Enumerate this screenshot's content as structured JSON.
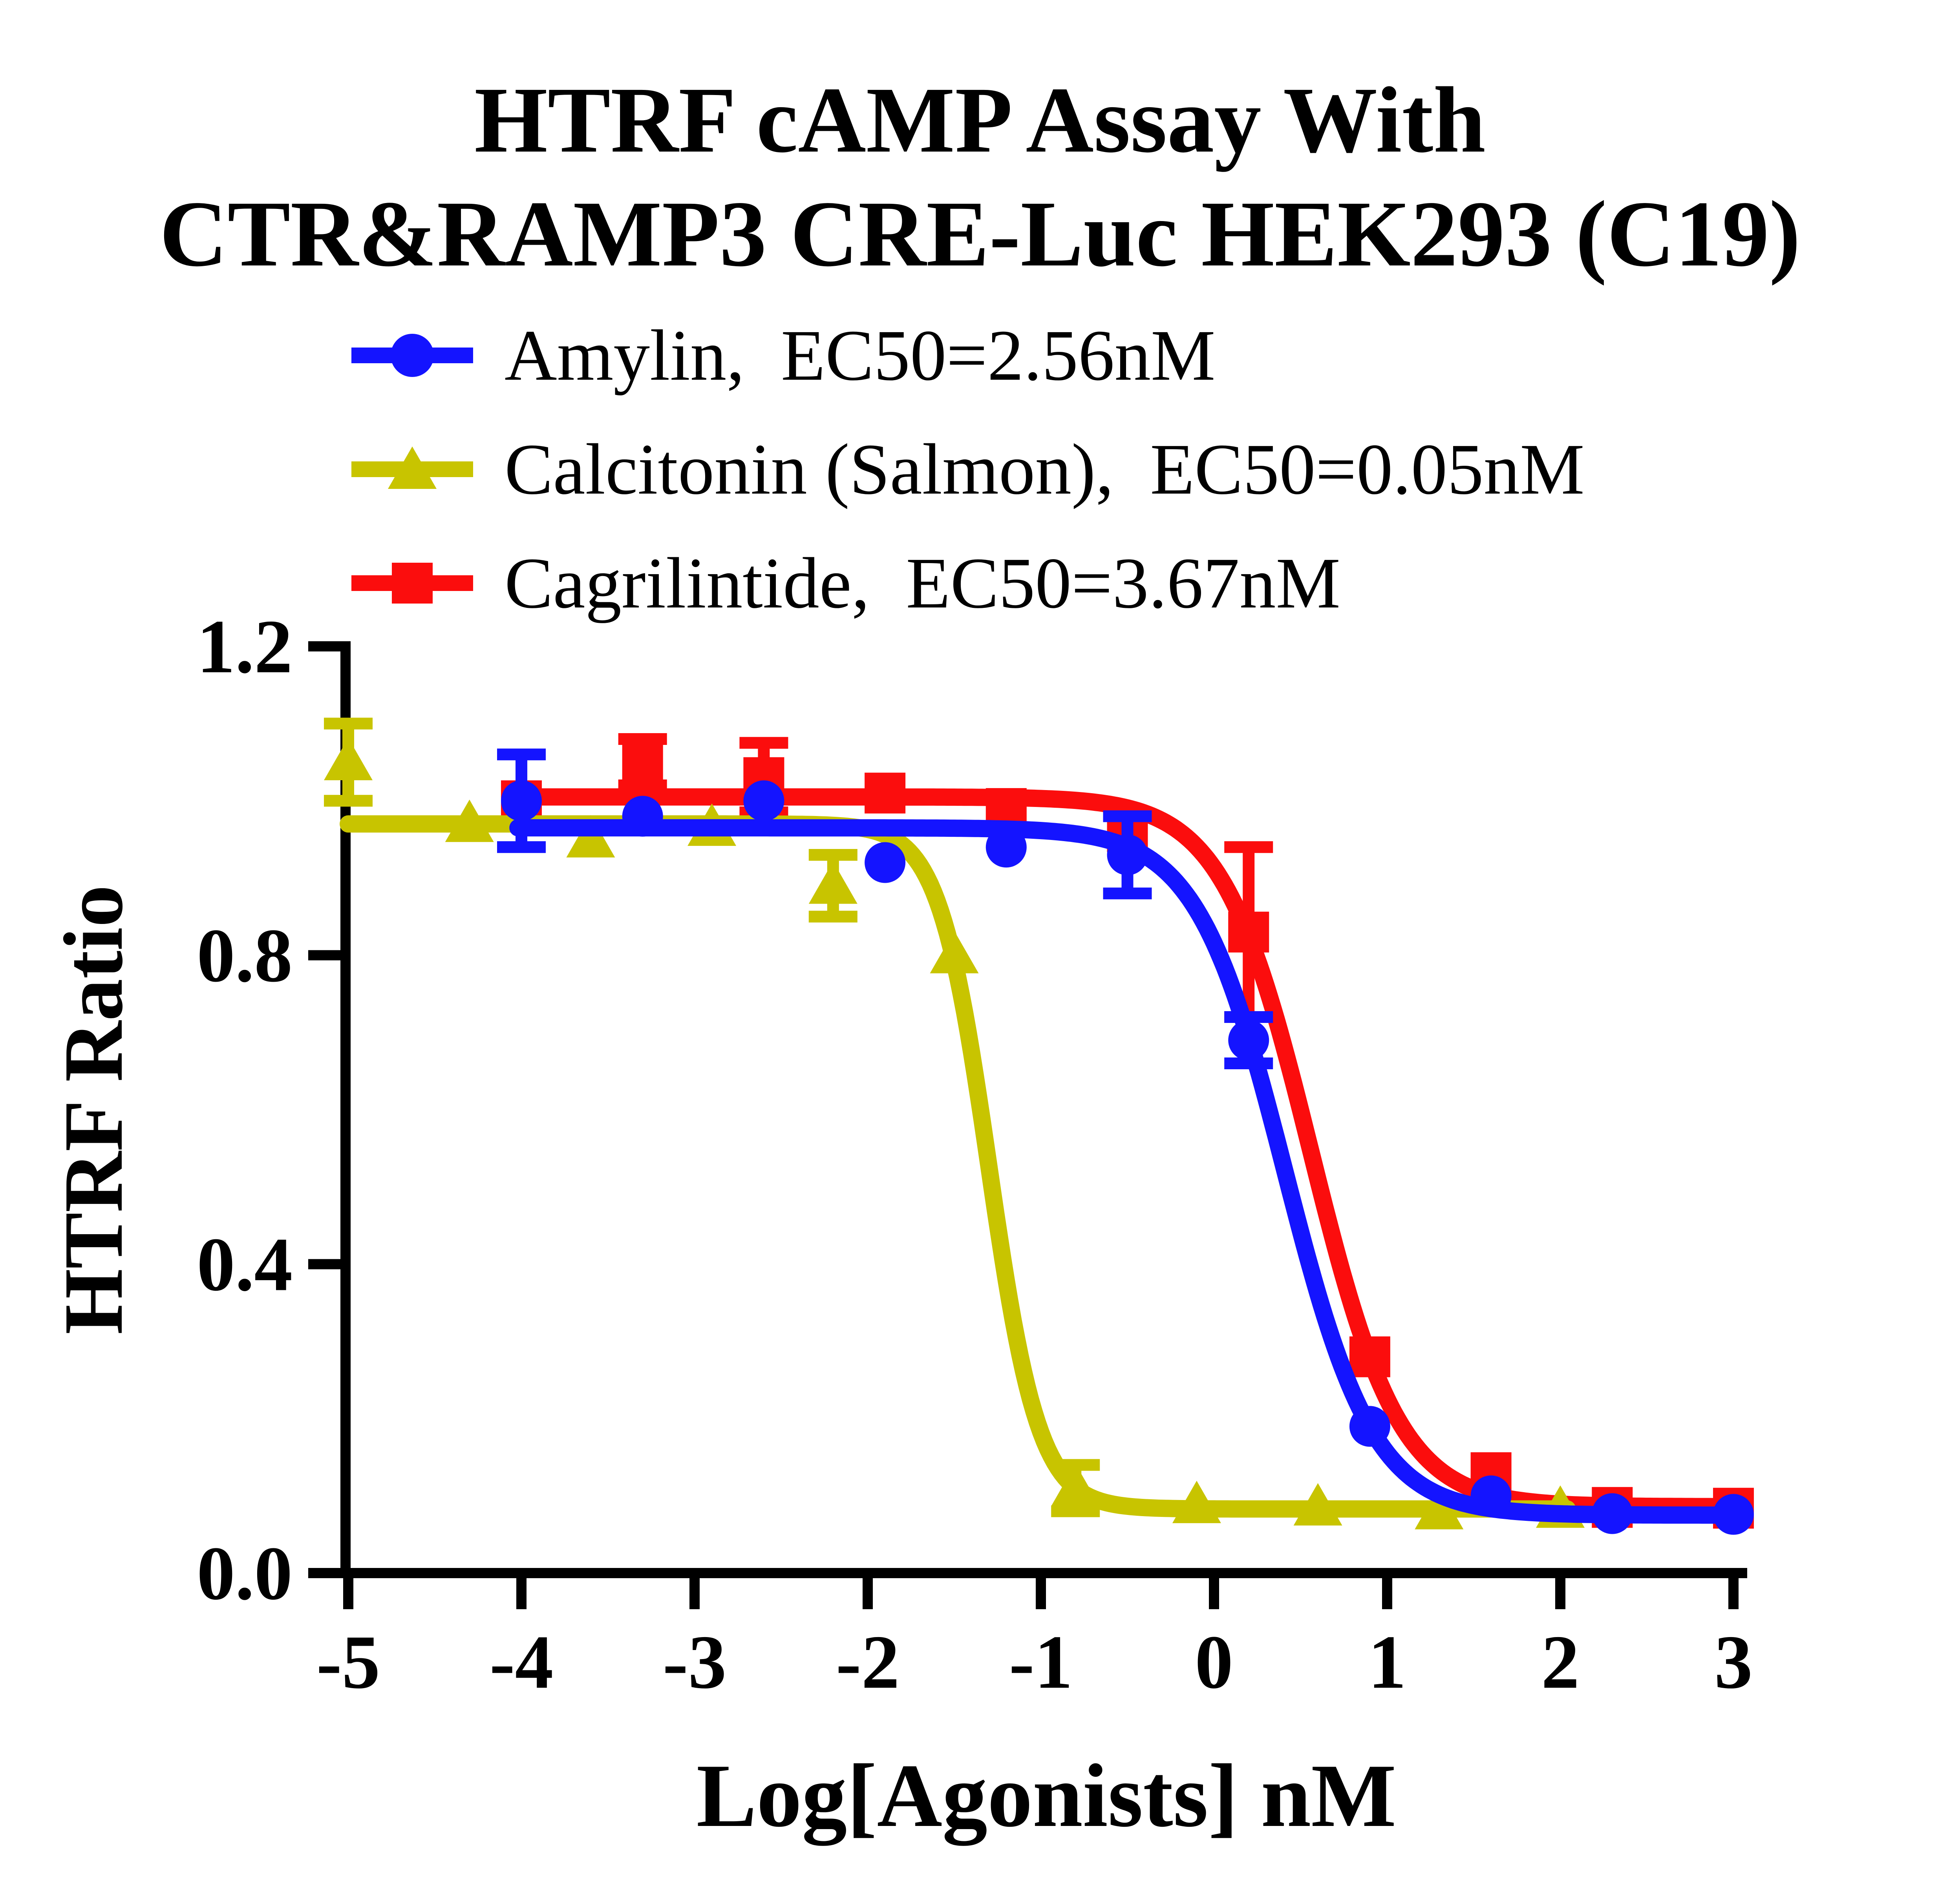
{
  "title": {
    "line1": "HTRF cAMP Assay With",
    "line2": "CTR&RAMP3 CRE-Luc HEK293 (C19)"
  },
  "chart_data": {
    "type": "scatter",
    "subtype": "dose-response-sigmoid",
    "title": "HTRF cAMP Assay With CTR&RAMP3 CRE-Luc HEK293 (C19)",
    "xlabel": "Log[Agonists] nM",
    "ylabel": "HTRF Ratio",
    "xlim": [
      -5,
      3
    ],
    "ylim": [
      0.0,
      1.2
    ],
    "grid": false,
    "legend_position": "top-left",
    "x_ticks": [
      {
        "v": -5,
        "label": "-5"
      },
      {
        "v": -4,
        "label": "-4"
      },
      {
        "v": -3,
        "label": "-3"
      },
      {
        "v": -2,
        "label": "-2"
      },
      {
        "v": -1,
        "label": "-1"
      },
      {
        "v": 0,
        "label": "0"
      },
      {
        "v": 1,
        "label": "1"
      },
      {
        "v": 2,
        "label": "2"
      },
      {
        "v": 3,
        "label": "3"
      }
    ],
    "y_ticks": [
      {
        "v": 0.0,
        "label": "0.0"
      },
      {
        "v": 0.4,
        "label": "0.4"
      },
      {
        "v": 0.8,
        "label": "0.8"
      },
      {
        "v": 1.2,
        "label": "1.2"
      }
    ],
    "draw_order": [
      2,
      1,
      0
    ],
    "series": [
      {
        "name": "Amylin",
        "legend_label": "Amylin,  EC50=2.56nM",
        "ec50": "2.56nM",
        "marker": "circle",
        "color": "#1414FF",
        "fit": {
          "top": 0.965,
          "bottom": 0.075,
          "logEC50": 0.41,
          "hill": 1.7,
          "x_start": -4.02,
          "x_end": 3.05
        },
        "points": [
          {
            "x": -4.0,
            "y": 1.0,
            "err": 0.06
          },
          {
            "x": -3.3,
            "y": 0.98,
            "err": 0
          },
          {
            "x": -2.6,
            "y": 1.0,
            "err": 0
          },
          {
            "x": -1.9,
            "y": 0.92,
            "err": 0
          },
          {
            "x": -1.2,
            "y": 0.94,
            "err": 0
          },
          {
            "x": -0.5,
            "y": 0.93,
            "err": 0.05
          },
          {
            "x": 0.2,
            "y": 0.69,
            "err": 0.03
          },
          {
            "x": 0.9,
            "y": 0.19,
            "err": 0
          },
          {
            "x": 1.6,
            "y": 0.1,
            "err": 0
          },
          {
            "x": 2.3,
            "y": 0.077,
            "err": 0
          },
          {
            "x": 3.0,
            "y": 0.076,
            "err": 0
          }
        ]
      },
      {
        "name": "Calcitonin (Salmon)",
        "legend_label": "Calcitonin (Salmon),  EC50=0.05nM",
        "ec50": "0.05nM",
        "marker": "triangle",
        "color": "#C8C400",
        "fit": {
          "top": 0.97,
          "bottom": 0.083,
          "logEC50": -1.3,
          "hill": 3.0,
          "x_start": -5.0,
          "x_end": 2.05
        },
        "points": [
          {
            "x": -5.0,
            "y": 1.05,
            "err": 0.05
          },
          {
            "x": -4.3,
            "y": 0.97,
            "err": 0
          },
          {
            "x": -3.6,
            "y": 0.95,
            "err": 0
          },
          {
            "x": -2.9,
            "y": 0.965,
            "err": 0
          },
          {
            "x": -2.2,
            "y": 0.89,
            "err": 0.04
          },
          {
            "x": -1.5,
            "y": 0.8,
            "err": 0
          },
          {
            "x": -0.8,
            "y": 0.11,
            "err": 0.03
          },
          {
            "x": -0.1,
            "y": 0.088,
            "err": 0
          },
          {
            "x": 0.6,
            "y": 0.085,
            "err": 0
          },
          {
            "x": 1.3,
            "y": 0.08,
            "err": 0
          },
          {
            "x": 2.0,
            "y": 0.082,
            "err": 0
          }
        ]
      },
      {
        "name": "Cagrilintide",
        "legend_label": "Cagrilintide,  EC50=3.67nM",
        "ec50": "3.67nM",
        "marker": "square",
        "color": "#FB0D0D",
        "fit": {
          "top": 1.005,
          "bottom": 0.086,
          "logEC50": 0.56,
          "hill": 1.7,
          "x_start": -4.02,
          "x_end": 3.05
        },
        "points": [
          {
            "x": -4.0,
            "y": 1.0,
            "err": 0
          },
          {
            "x": -3.3,
            "y": 1.05,
            "err": 0.03
          },
          {
            "x": -2.6,
            "y": 1.03,
            "err": 0.045
          },
          {
            "x": -1.9,
            "y": 1.01,
            "err": 0
          },
          {
            "x": -1.2,
            "y": 0.99,
            "err": 0
          },
          {
            "x": -0.5,
            "y": 0.96,
            "err": 0
          },
          {
            "x": 0.2,
            "y": 0.83,
            "err": 0.11
          },
          {
            "x": 0.9,
            "y": 0.28,
            "err": 0
          },
          {
            "x": 1.6,
            "y": 0.13,
            "err": 0
          },
          {
            "x": 2.3,
            "y": 0.085,
            "err": 0
          },
          {
            "x": 3.0,
            "y": 0.084,
            "err": 0
          }
        ]
      }
    ]
  }
}
